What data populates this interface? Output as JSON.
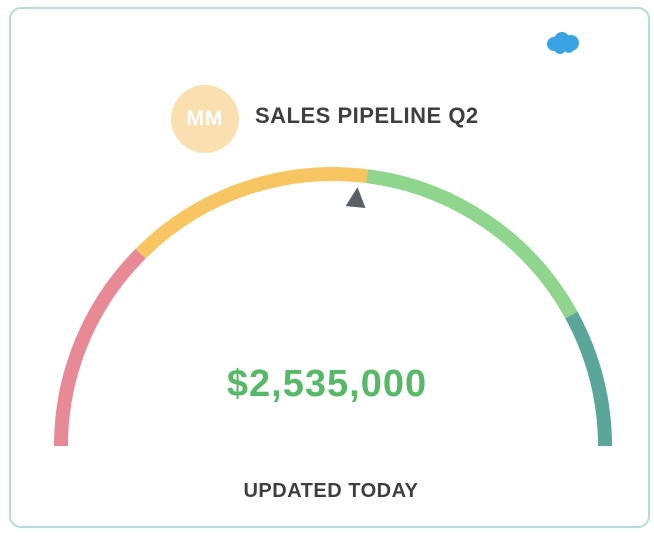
{
  "widget": {
    "avatar_initials": "MM",
    "title": "SALES PIPELINE Q2",
    "value": "$2,535,000",
    "footer": "UPDATED TODAY"
  },
  "icons": {
    "brand": "salesforce-cloud-icon",
    "pointer": "gauge-pointer-icon"
  },
  "gauge": {
    "segments": [
      {
        "name": "red",
        "color": "#e78a96",
        "from": 0.0,
        "to": 0.25
      },
      {
        "name": "yellow",
        "color": "#f7c561",
        "from": 0.25,
        "to": 0.54
      },
      {
        "name": "green",
        "color": "#8fd58e",
        "from": 0.54,
        "to": 0.84
      },
      {
        "name": "teal",
        "color": "#5aa69a",
        "from": 0.84,
        "to": 1.0
      }
    ],
    "pointer_fraction": 0.53
  },
  "colors": {
    "card_border": "#b6dcd6",
    "value": "#57b968",
    "text": "#3f3f3f",
    "avatar_bg": "#fae0b1",
    "brand": "#3aa3e3",
    "pointer": "#5a6068"
  }
}
